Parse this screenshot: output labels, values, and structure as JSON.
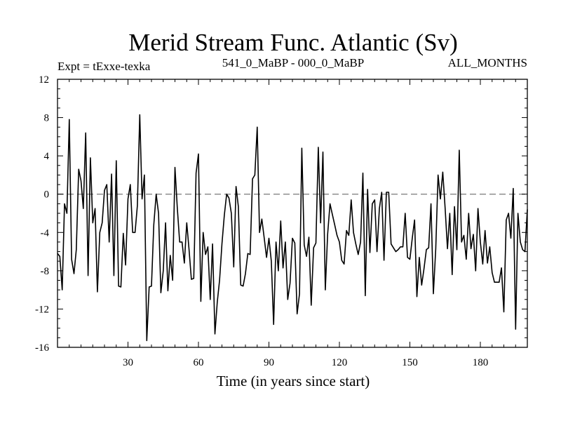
{
  "chart_data": {
    "type": "line",
    "title": "Merid Stream Func. Atlantic (Sv)",
    "subtitle_left": "Expt = tExxe-texka",
    "subtitle_center": "541_0_MaBP - 000_0_MaBP",
    "subtitle_right": "ALL_MONTHS",
    "xlabel": "Time (in years since start)",
    "ylabel": "",
    "xlim": [
      0,
      200
    ],
    "ylim": [
      -16,
      12
    ],
    "xticks": [
      30,
      60,
      90,
      120,
      150,
      180
    ],
    "yticks": [
      12,
      8,
      4,
      0,
      -4,
      -8,
      -12,
      -16
    ],
    "zero_line": true,
    "series": [
      {
        "name": "Merid Stream Func. Atlantic",
        "x": [
          0,
          1,
          2,
          3,
          4,
          5,
          6,
          7,
          8,
          9,
          10,
          11,
          12,
          13,
          14,
          15,
          16,
          17,
          18,
          19,
          20,
          21,
          22,
          23,
          24,
          25,
          26,
          27,
          28,
          29,
          30,
          31,
          32,
          33,
          34,
          35,
          36,
          37,
          38,
          39,
          40,
          41,
          42,
          43,
          44,
          45,
          46,
          47,
          48,
          49,
          50,
          51,
          52,
          53,
          54,
          55,
          56,
          57,
          58,
          59,
          60,
          61,
          62,
          63,
          64,
          65,
          66,
          67,
          68,
          69,
          70,
          71,
          72,
          73,
          74,
          75,
          76,
          77,
          78,
          79,
          80,
          81,
          82,
          83,
          84,
          85,
          86,
          87,
          88,
          89,
          90,
          91,
          92,
          93,
          94,
          95,
          96,
          97,
          98,
          99,
          100,
          101,
          102,
          103,
          104,
          105,
          106,
          107,
          108,
          109,
          110,
          111,
          112,
          113,
          114,
          115,
          116,
          117,
          118,
          119,
          120,
          121,
          122,
          123,
          124,
          125,
          126,
          127,
          128,
          129,
          130,
          131,
          132,
          133,
          134,
          135,
          136,
          137,
          138,
          139,
          140,
          141,
          142,
          143,
          144,
          145,
          146,
          147,
          148,
          149,
          150,
          151,
          152,
          153,
          154,
          155,
          156,
          157,
          158,
          159,
          160,
          161,
          162,
          163,
          164,
          165,
          166,
          167,
          168,
          169,
          170,
          171,
          172,
          173,
          174,
          175,
          176,
          177,
          178,
          179,
          180,
          181,
          182,
          183,
          184,
          185,
          186,
          187,
          188,
          189,
          190,
          191,
          192,
          193,
          194,
          195,
          196,
          197,
          198,
          199,
          200
        ],
        "values": [
          -6.2,
          -6.5,
          -10.0,
          -1.0,
          -2.0,
          7.8,
          -6.8,
          -8.3,
          -5.8,
          2.6,
          1.4,
          -1.5,
          6.4,
          -8.5,
          3.8,
          -3.0,
          -1.5,
          -10.2,
          -4.0,
          -3.0,
          0.4,
          1.0,
          -5.0,
          2.1,
          -8.5,
          3.5,
          -9.6,
          -9.7,
          -4.1,
          -7.4,
          -0.5,
          1.0,
          -4.0,
          -4.0,
          -1.2,
          8.3,
          -0.5,
          2.0,
          -15.3,
          -9.7,
          -9.6,
          -3.2,
          0.0,
          -2.0,
          -10.3,
          -8.0,
          -3.0,
          -10.1,
          -6.4,
          -9.0,
          2.8,
          -1.4,
          -5.0,
          -5.0,
          -7.2,
          -3.0,
          -5.8,
          -8.9,
          -8.8,
          2.2,
          4.2,
          -11.2,
          -4.0,
          -6.3,
          -5.5,
          -11.0,
          -5.2,
          -14.6,
          -11.3,
          -9.0,
          -5.2,
          -2.2,
          0.0,
          -0.4,
          -2.0,
          -7.6,
          0.8,
          -1.3,
          -9.5,
          -9.6,
          -8.3,
          -6.2,
          -6.3,
          1.6,
          2.0,
          7.0,
          -4.0,
          -2.6,
          -4.6,
          -6.6,
          -4.6,
          -7.0,
          -13.6,
          -5.0,
          -8.0,
          -2.8,
          -7.7,
          -5.0,
          -11.0,
          -9.3,
          -4.6,
          -5.1,
          -12.5,
          -10.4,
          4.8,
          -5.3,
          -6.5,
          -4.5,
          -11.6,
          -5.6,
          -5.1,
          4.9,
          -3.0,
          4.4,
          -10.0,
          -4.2,
          -1.0,
          -2.1,
          -3.2,
          -4.3,
          -5.0,
          -6.9,
          -7.3,
          -3.8,
          -4.3,
          -0.6,
          -4.0,
          -5.2,
          -6.3,
          -5.0,
          2.2,
          -10.6,
          0.5,
          -6.1,
          -1.0,
          -0.6,
          -6.0,
          -1.5,
          0.2,
          -6.9,
          0.2,
          0.2,
          -5.2,
          -5.6,
          -6.0,
          -5.8,
          -5.5,
          -5.5,
          -2.0,
          -6.6,
          -6.8,
          -4.6,
          -2.7,
          -10.7,
          -6.6,
          -9.5,
          -7.8,
          -5.8,
          -5.6,
          -1.0,
          -10.4,
          -5.7,
          2.0,
          -0.5,
          2.3,
          -1.5,
          -5.7,
          -2.0,
          -8.4,
          -1.3,
          -5.8,
          4.6,
          -5.0,
          -4.3,
          -6.8,
          -2.0,
          -5.7,
          -4.2,
          -8.0,
          -1.5,
          -5.0,
          -7.3,
          -3.8,
          -7.2,
          -5.5,
          -8.2,
          -9.2,
          -9.2,
          -9.2,
          -7.7,
          -12.3,
          -2.7,
          -2.0,
          -4.6,
          0.6,
          -14.1,
          -2.0,
          -5.0,
          -5.8,
          -6.0,
          -1.6
        ]
      }
    ],
    "colors": {
      "line": "#000000",
      "axis": "#000000",
      "zero_line": "#7a7a7a",
      "background": "#ffffff"
    }
  }
}
